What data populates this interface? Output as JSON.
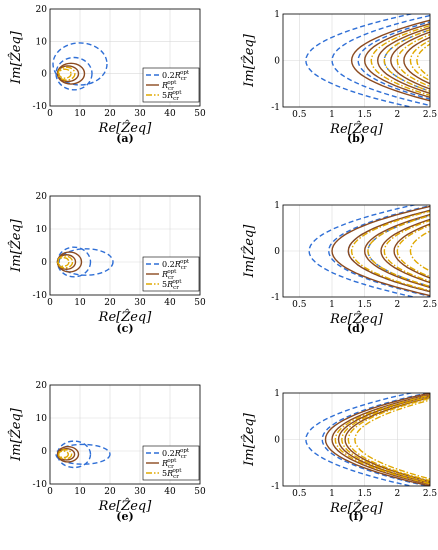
{
  "colors": {
    "c1": "#2f6fd6",
    "c2": "#8b4a1f",
    "c3": "#e0a800",
    "grid": "#d9d9d9"
  },
  "legend": {
    "items": [
      "0.2R_{cr}^{opt}",
      "R_{cr}^{opt}",
      "5R_{cr}^{opt}"
    ]
  },
  "chart_data": [
    {
      "panel": "(a)",
      "type": "line",
      "xlabel": "Re[Ẑeq]",
      "ylabel": "Im[Ẑeq]",
      "xlim": [
        0,
        50
      ],
      "ylim": [
        -10,
        20
      ],
      "xticks": [
        0,
        10,
        20,
        30,
        40,
        50
      ],
      "yticks": [
        -10,
        0,
        10,
        20
      ],
      "grid": true,
      "legend_position": "right",
      "series": [
        {
          "name": "0.2R_{cr}^{opt}",
          "style": "dashed",
          "color": "#2f6fd6",
          "loops": [
            {
              "center": [
                10,
                3
              ],
              "rx": 9,
              "ry": 6.5
            },
            {
              "center": [
                8,
                0
              ],
              "rx": 6,
              "ry": 5
            }
          ]
        },
        {
          "name": "R_{cr}^{opt}",
          "style": "solid",
          "color": "#8b4a1f",
          "loops": [
            {
              "center": [
                7,
                0
              ],
              "rx": 4.5,
              "ry": 3.2
            },
            {
              "center": [
                6,
                0
              ],
              "rx": 3.5,
              "ry": 2.4
            }
          ]
        },
        {
          "name": "5R_{cr}^{opt}",
          "style": "dashdot",
          "color": "#e0a800",
          "loops": [
            {
              "center": [
                5.5,
                0
              ],
              "rx": 2.8,
              "ry": 2.0
            },
            {
              "center": [
                5,
                0
              ],
              "rx": 2.0,
              "ry": 1.4
            }
          ]
        }
      ]
    },
    {
      "panel": "(b)",
      "type": "line",
      "xlabel": "Re[Ẑeq]",
      "ylabel": "Im[Ẑeq]",
      "xlim": [
        0.25,
        2.5
      ],
      "ylim": [
        -1,
        1
      ],
      "xticks": [
        0.5,
        1,
        1.5,
        2,
        2.5
      ],
      "yticks": [
        -1,
        0,
        1
      ],
      "grid": true,
      "series": [
        {
          "name": "0.2R_{cr}^{opt}",
          "style": "dashed",
          "color": "#2f6fd6",
          "vertices": [
            [
              0.6,
              0
            ],
            [
              1.0,
              0
            ],
            [
              1.4,
              0
            ],
            [
              1.8,
              0
            ]
          ]
        },
        {
          "name": "R_{cr}^{opt}",
          "style": "solid",
          "color": "#8b4a1f",
          "vertices": [
            [
              1.3,
              0
            ],
            [
              1.5,
              0
            ],
            [
              1.7,
              0
            ],
            [
              1.9,
              0
            ],
            [
              2.1,
              0
            ]
          ]
        },
        {
          "name": "5R_{cr}^{opt}",
          "style": "dashdot",
          "color": "#e0a800",
          "vertices": [
            [
              1.6,
              0
            ],
            [
              1.8,
              0
            ],
            [
              2.0,
              0
            ],
            [
              2.2,
              0
            ],
            [
              2.3,
              0
            ]
          ]
        }
      ]
    },
    {
      "panel": "(c)",
      "type": "line",
      "xlabel": "Re[Ẑeq]",
      "ylabel": "Im[Ẑeq]",
      "xlim": [
        0,
        50
      ],
      "ylim": [
        -10,
        20
      ],
      "xticks": [
        0,
        10,
        20,
        30,
        40,
        50
      ],
      "yticks": [
        -10,
        0,
        10,
        20
      ],
      "grid": true,
      "legend_position": "right",
      "series": [
        {
          "name": "0.2R_{cr}^{opt}",
          "style": "dashed",
          "color": "#2f6fd6",
          "loops": [
            {
              "center": [
                12,
                0
              ],
              "rx": 9,
              "ry": 4
            },
            {
              "center": [
                8,
                0
              ],
              "rx": 5.5,
              "ry": 4.5
            }
          ]
        },
        {
          "name": "R_{cr}^{opt}",
          "style": "solid",
          "color": "#8b4a1f",
          "loops": [
            {
              "center": [
                6.5,
                0
              ],
              "rx": 4,
              "ry": 3
            },
            {
              "center": [
                5.5,
                0
              ],
              "rx": 3,
              "ry": 2.2
            }
          ]
        },
        {
          "name": "5R_{cr}^{opt}",
          "style": "dashdot",
          "color": "#e0a800",
          "loops": [
            {
              "center": [
                5,
                0
              ],
              "rx": 2.5,
              "ry": 1.8
            },
            {
              "center": [
                4.5,
                0
              ],
              "rx": 1.8,
              "ry": 1.3
            }
          ]
        }
      ]
    },
    {
      "panel": "(d)",
      "type": "line",
      "xlabel": "Re[Ẑeq]",
      "ylabel": "Im[Ẑeq]",
      "xlim": [
        0.25,
        2.5
      ],
      "ylim": [
        -1,
        1
      ],
      "xticks": [
        0.5,
        1,
        1.5,
        2,
        2.5
      ],
      "yticks": [
        -1,
        0,
        1
      ],
      "grid": true,
      "series": [
        {
          "name": "0.2R_{cr}^{opt}",
          "style": "dashed",
          "color": "#2f6fd6",
          "vertices": [
            [
              0.65,
              0
            ],
            [
              0.95,
              0
            ],
            [
              1.25,
              0
            ],
            [
              1.55,
              0
            ]
          ]
        },
        {
          "name": "R_{cr}^{opt}",
          "style": "solid",
          "color": "#8b4a1f",
          "vertices": [
            [
              1.0,
              0
            ],
            [
              1.25,
              0
            ],
            [
              1.5,
              0
            ],
            [
              1.75,
              0
            ],
            [
              1.95,
              0
            ]
          ]
        },
        {
          "name": "5R_{cr}^{opt}",
          "style": "dashdot",
          "color": "#e0a800",
          "vertices": [
            [
              1.3,
              0
            ],
            [
              1.55,
              0
            ],
            [
              1.8,
              0
            ],
            [
              2.0,
              0
            ],
            [
              2.2,
              0
            ]
          ]
        }
      ]
    },
    {
      "panel": "(e)",
      "type": "line",
      "xlabel": "Re[Ẑeq]",
      "ylabel": "Im[Ẑeq]",
      "xlim": [
        0,
        50
      ],
      "ylim": [
        -10,
        20
      ],
      "xticks": [
        0,
        10,
        20,
        30,
        40,
        50
      ],
      "yticks": [
        -10,
        0,
        10,
        20
      ],
      "grid": true,
      "legend_position": "right",
      "series": [
        {
          "name": "0.2R_{cr}^{opt}",
          "style": "dashed",
          "color": "#2f6fd6",
          "loops": [
            {
              "center": [
                11,
                -1
              ],
              "rx": 9,
              "ry": 3
            },
            {
              "center": [
                8,
                -1
              ],
              "rx": 5.5,
              "ry": 4
            }
          ]
        },
        {
          "name": "R_{cr}^{opt}",
          "style": "solid",
          "color": "#8b4a1f",
          "loops": [
            {
              "center": [
                6,
                -1
              ],
              "rx": 3.5,
              "ry": 2.3
            },
            {
              "center": [
                5.5,
                -1
              ],
              "rx": 2.7,
              "ry": 1.7
            }
          ]
        },
        {
          "name": "5R_{cr}^{opt}",
          "style": "dashdot",
          "color": "#e0a800",
          "loops": [
            {
              "center": [
                5,
                -1
              ],
              "rx": 2.2,
              "ry": 1.4
            },
            {
              "center": [
                4.5,
                -1
              ],
              "rx": 1.6,
              "ry": 1.0
            }
          ]
        }
      ]
    },
    {
      "panel": "(f)",
      "type": "line",
      "xlabel": "Re[Ẑeq]",
      "ylabel": "Im[Ẑeq]",
      "xlim": [
        0.25,
        2.5
      ],
      "ylim": [
        -1,
        1
      ],
      "xticks": [
        0.5,
        1,
        1.5,
        2,
        2.5
      ],
      "yticks": [
        -1,
        0,
        1
      ],
      "grid": true,
      "series": [
        {
          "name": "0.2R_{cr}^{opt}",
          "style": "dashed",
          "color": "#2f6fd6",
          "vertices": [
            [
              0.6,
              0
            ],
            [
              0.85,
              0
            ]
          ]
        },
        {
          "name": "R_{cr}^{opt}",
          "style": "solid",
          "color": "#8b4a1f",
          "vertices": [
            [
              0.9,
              0
            ],
            [
              1.0,
              0
            ],
            [
              1.1,
              0
            ],
            [
              1.2,
              0
            ]
          ]
        },
        {
          "name": "5R_{cr}^{opt}",
          "style": "dashdot",
          "color": "#e0a800",
          "vertices": [
            [
              1.05,
              0
            ],
            [
              1.15,
              0
            ],
            [
              1.25,
              0
            ],
            [
              1.35,
              0
            ]
          ]
        }
      ]
    }
  ]
}
